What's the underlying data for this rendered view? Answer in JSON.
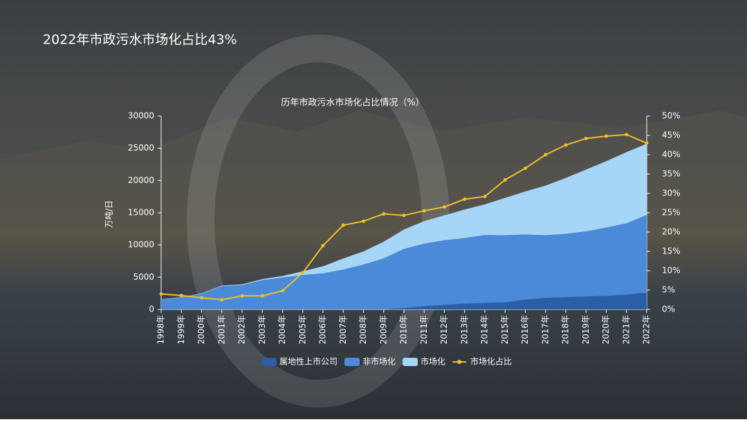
{
  "page_title": "2022年市政污水市场化占比43%",
  "chart_data": {
    "type": "area",
    "stacked": true,
    "title": "历年市政污水市场化占比情况（%）",
    "ylabel": "万吨/日",
    "categories": [
      "1998年",
      "1999年",
      "2000年",
      "2001年",
      "2002年",
      "2003年",
      "2004年",
      "2005年",
      "2006年",
      "2007年",
      "2008年",
      "2009年",
      "2010年",
      "2011年",
      "2012年",
      "2013年",
      "2014年",
      "2015年",
      "2016年",
      "2017年",
      "2018年",
      "2019年",
      "2020年",
      "2021年",
      "2022年"
    ],
    "ylim": [
      0,
      30000
    ],
    "yticks": [
      0,
      5000,
      10000,
      15000,
      20000,
      25000,
      30000
    ],
    "y2lim": [
      0,
      50
    ],
    "y2ticks": [
      {
        "value": 0,
        "label": "0%"
      },
      {
        "value": 5,
        "label": "5%"
      },
      {
        "value": 10,
        "label": "10%"
      },
      {
        "value": 15,
        "label": "15%"
      },
      {
        "value": 20,
        "label": "20%"
      },
      {
        "value": 25,
        "label": "25%"
      },
      {
        "value": 30,
        "label": "30%"
      },
      {
        "value": 35,
        "label": "35%"
      },
      {
        "value": 40,
        "label": "40%"
      },
      {
        "value": 45,
        "label": "45%"
      },
      {
        "value": 50,
        "label": "50%"
      }
    ],
    "series": [
      {
        "name": "属地性上市公司",
        "color": "#2a5fa5",
        "values": [
          0,
          0,
          0,
          0,
          0,
          0,
          0,
          0,
          0,
          0,
          0,
          0,
          200,
          500,
          700,
          900,
          1000,
          1100,
          1500,
          1800,
          1900,
          2000,
          2100,
          2300,
          2600
        ]
      },
      {
        "name": "非市场化",
        "color": "#4a8ad8",
        "values": [
          1536,
          1832,
          2425,
          3607,
          3763,
          4535,
          4950,
          5340,
          5600,
          6180,
          6950,
          7910,
          9190,
          9710,
          10030,
          10180,
          10540,
          10400,
          10120,
          9720,
          9830,
          10110,
          10600,
          11070,
          12050
        ]
      },
      {
        "name": "市场化",
        "color": "#a6d6f7",
        "values": [
          64,
          68,
          75,
          93,
          137,
          165,
          250,
          560,
          1100,
          1720,
          2050,
          2590,
          3010,
          3490,
          3870,
          4420,
          4760,
          5800,
          6680,
          7680,
          8670,
          9590,
          10300,
          11030,
          11050
        ]
      },
      {
        "name": "市场化占比",
        "color": "#f0c02c",
        "type": "line",
        "axis": "y2",
        "values": [
          4.0,
          3.6,
          3.0,
          2.5,
          3.5,
          3.5,
          4.8,
          9.5,
          16.5,
          21.8,
          22.8,
          24.7,
          24.3,
          25.5,
          26.5,
          28.5,
          29.2,
          33.5,
          36.5,
          40.0,
          42.5,
          44.2,
          44.8,
          45.2,
          43.0
        ]
      }
    ]
  }
}
